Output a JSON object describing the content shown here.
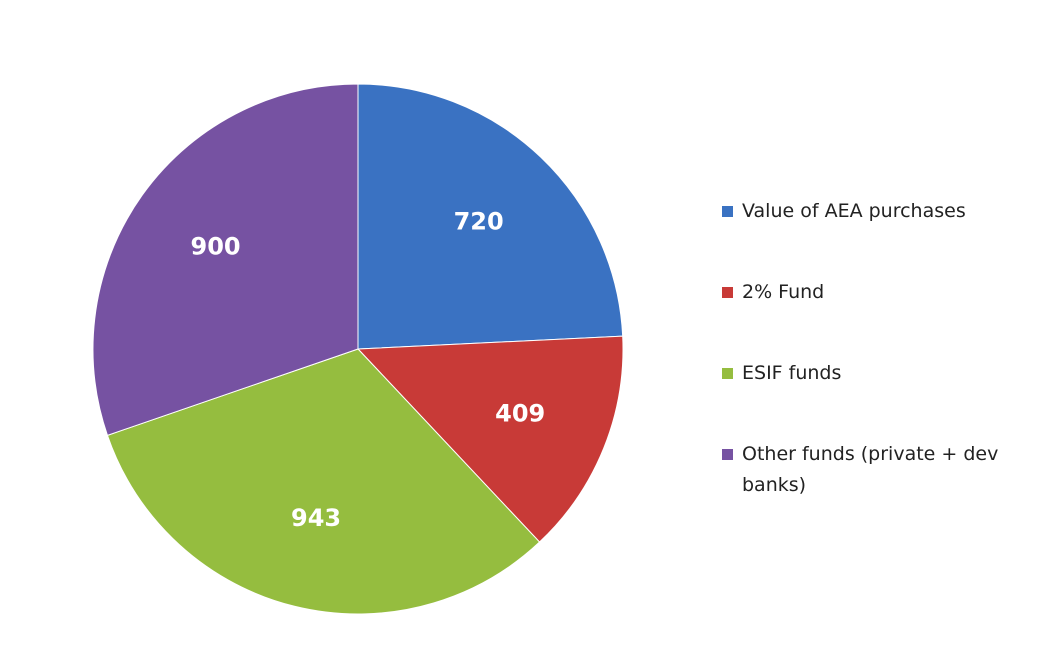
{
  "chart_data": {
    "type": "pie",
    "categories": [
      "Value of AEA purchases",
      "2% Fund",
      "ESIF funds",
      "Other funds (private + dev banks)"
    ],
    "values": [
      720,
      409,
      943,
      900
    ],
    "colors": [
      "#3a72c2",
      "#c83a37",
      "#95bd3f",
      "#7652a2"
    ],
    "legend": "right"
  }
}
